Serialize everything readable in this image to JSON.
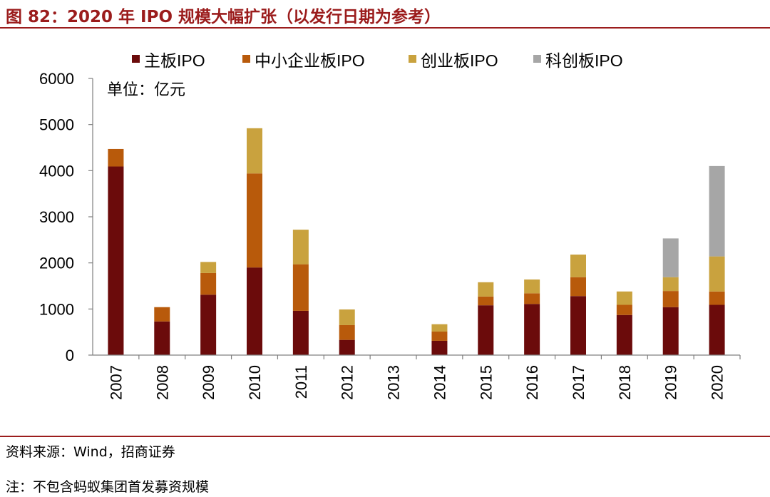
{
  "header": {
    "title": "图 82：2020 年 IPO 规模大幅扩张（以发行日期为参考）"
  },
  "footer": {
    "source": "资料来源：Wind，招商证券",
    "note": "注：不包含蚂蚁集团首发募资规模"
  },
  "chart_data": {
    "type": "bar",
    "stacked": true,
    "title": "",
    "unit_label": "单位：亿元",
    "xlabel": "",
    "ylabel": "",
    "ylim": [
      0,
      6000
    ],
    "yticks": [
      0,
      1000,
      2000,
      3000,
      4000,
      5000,
      6000
    ],
    "categories": [
      "2007",
      "2008",
      "2009",
      "2010",
      "2011",
      "2012",
      "2013",
      "2014",
      "2015",
      "2016",
      "2017",
      "2018",
      "2019",
      "2020"
    ],
    "series": [
      {
        "name": "主板IPO",
        "color": "#6b0b0b",
        "values": [
          4090,
          730,
          1310,
          1900,
          960,
          330,
          0,
          310,
          1080,
          1110,
          1280,
          870,
          1040,
          1090
        ]
      },
      {
        "name": "中小企业板IPO",
        "color": "#b85a0b",
        "values": [
          380,
          310,
          470,
          2040,
          1010,
          320,
          0,
          200,
          190,
          230,
          410,
          220,
          350,
          290
        ]
      },
      {
        "name": "创业板IPO",
        "color": "#c9a23e",
        "values": [
          0,
          0,
          240,
          980,
          750,
          340,
          0,
          160,
          310,
          300,
          490,
          290,
          300,
          760
        ]
      },
      {
        "name": "科创板IPO",
        "color": "#a6a6a6",
        "values": [
          0,
          0,
          0,
          0,
          0,
          0,
          0,
          0,
          0,
          0,
          0,
          0,
          840,
          1960
        ]
      }
    ],
    "legend_position": "top",
    "grid": false
  }
}
